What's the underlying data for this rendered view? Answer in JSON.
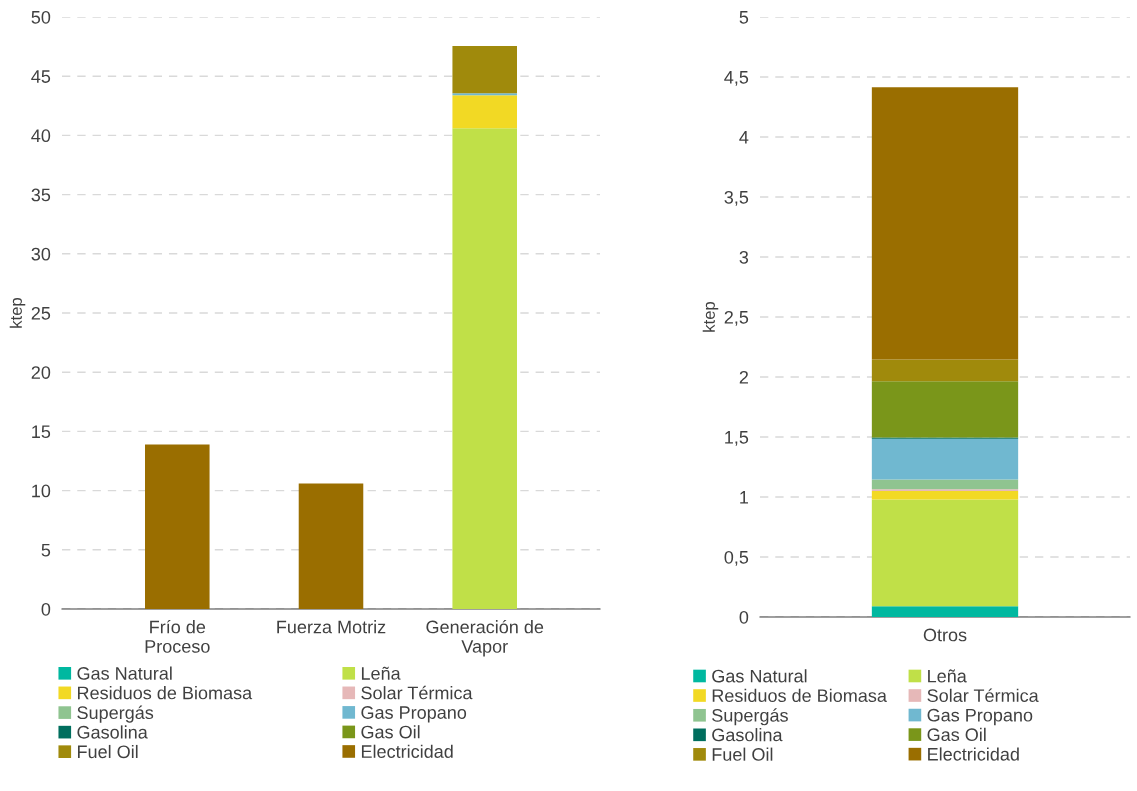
{
  "chart_data": [
    {
      "type": "bar",
      "stacked": true,
      "ylabel": "ktep",
      "categories": [
        "Frío de Proceso",
        "Fuerza Motriz",
        "Generación de Vapor"
      ],
      "ylim": [
        0,
        50
      ],
      "yticks": [
        0,
        5,
        10,
        15,
        20,
        25,
        30,
        35,
        40,
        45,
        50
      ],
      "grid": "y",
      "legend": "bottom",
      "series": [
        {
          "name": "Gas Natural",
          "color": "#00b8a0",
          "values": [
            0,
            0,
            0
          ]
        },
        {
          "name": "Leña",
          "color": "#c0e048",
          "values": [
            0,
            0,
            40.6
          ]
        },
        {
          "name": "Residuos de Biomasa",
          "color": "#f2d924",
          "values": [
            0,
            0,
            2.8
          ]
        },
        {
          "name": "Solar Térmica",
          "color": "#e6b8b8",
          "values": [
            0,
            0,
            0
          ]
        },
        {
          "name": "Supergás",
          "color": "#8fc490",
          "values": [
            0,
            0,
            0
          ]
        },
        {
          "name": "Gas Propano",
          "color": "#70b8d0",
          "values": [
            0,
            0,
            0.15
          ]
        },
        {
          "name": "Gasolina",
          "color": "#006e5e",
          "values": [
            0,
            0,
            0
          ]
        },
        {
          "name": "Gas Oil",
          "color": "#7a961a",
          "values": [
            0,
            0,
            0
          ]
        },
        {
          "name": "Fuel Oil",
          "color": "#a08a0c",
          "values": [
            0,
            0,
            4.0
          ]
        },
        {
          "name": "Electricidad",
          "color": "#9a6e00",
          "values": [
            13.9,
            10.6,
            0
          ]
        }
      ]
    },
    {
      "type": "bar",
      "stacked": true,
      "ylabel": "ktep",
      "categories": [
        "Otros"
      ],
      "ylim": [
        0,
        5
      ],
      "yticks": [
        0,
        {
          "value": 0.5,
          "label": "0,5"
        },
        1,
        {
          "value": 1.5,
          "label": "1,5"
        },
        2,
        {
          "value": 2.5,
          "label": "2,5"
        },
        3,
        {
          "value": 3.5,
          "label": "3,5"
        },
        4,
        {
          "value": 4.5,
          "label": "4,5"
        },
        5
      ],
      "grid": "y",
      "legend": "bottom",
      "series": [
        {
          "name": "Gas Natural",
          "color": "#00b8a0",
          "values": [
            0.09
          ]
        },
        {
          "name": "Leña",
          "color": "#c0e048",
          "values": [
            0.89
          ]
        },
        {
          "name": "Residuos de Biomasa",
          "color": "#f2d924",
          "values": [
            0.07
          ]
        },
        {
          "name": "Solar Térmica",
          "color": "#e6b8b8",
          "values": [
            0.015
          ]
        },
        {
          "name": "Supergás",
          "color": "#8fc490",
          "values": [
            0.08
          ]
        },
        {
          "name": "Gas Propano",
          "color": "#70b8d0",
          "values": [
            0.34
          ]
        },
        {
          "name": "Gasolina",
          "color": "#006e5e",
          "values": [
            0.01
          ]
        },
        {
          "name": "Gas Oil",
          "color": "#7a961a",
          "values": [
            0.47
          ]
        },
        {
          "name": "Fuel Oil",
          "color": "#a08a0c",
          "values": [
            0.18
          ]
        },
        {
          "name": "Electricidad",
          "color": "#9a6e00",
          "values": [
            2.27
          ]
        }
      ]
    }
  ]
}
